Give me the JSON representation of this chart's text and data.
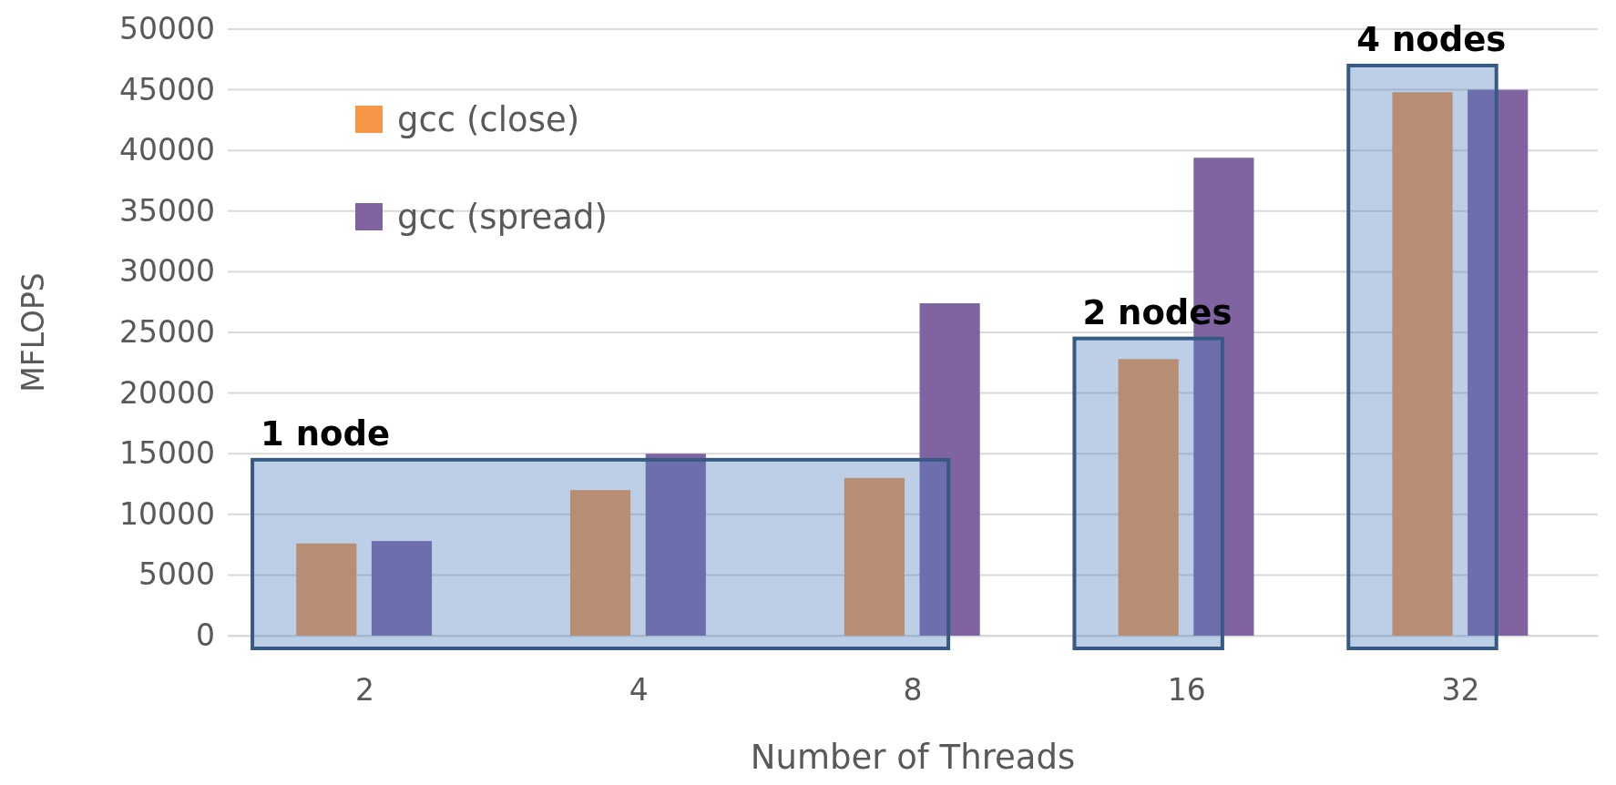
{
  "chart_data": {
    "type": "bar",
    "xlabel": "Number of Threads",
    "ylabel": "MFLOPS",
    "categories": [
      "2",
      "4",
      "8",
      "16",
      "32"
    ],
    "series": [
      {
        "name": "gcc (close)",
        "color": "#f79646",
        "values": [
          7600,
          12000,
          13000,
          22800,
          44800
        ]
      },
      {
        "name": "gcc (spread)",
        "color": "#8064a2",
        "values": [
          7800,
          15000,
          27400,
          39400,
          45000
        ]
      }
    ],
    "ylim": [
      0,
      50000
    ],
    "yticks": [
      0,
      5000,
      10000,
      15000,
      20000,
      25000,
      30000,
      35000,
      40000,
      45000,
      50000
    ],
    "grid": "y",
    "legend": "top left",
    "bands": [
      {
        "axis": "x",
        "from": "2",
        "to": "8",
        "color": "#4f81bd"
      },
      {
        "axis": "x",
        "from": "16",
        "to": "16",
        "color": "#4f81bd"
      },
      {
        "axis": "x",
        "from": "32",
        "to": "32",
        "color": "#4f81bd"
      }
    ],
    "annotations": [
      {
        "text": "1 node",
        "x": "2",
        "y": 14500
      },
      {
        "text": "2 nodes",
        "x": "16",
        "y": 24500
      },
      {
        "text": "4 nodes",
        "x": "32",
        "y": 47000
      }
    ]
  }
}
